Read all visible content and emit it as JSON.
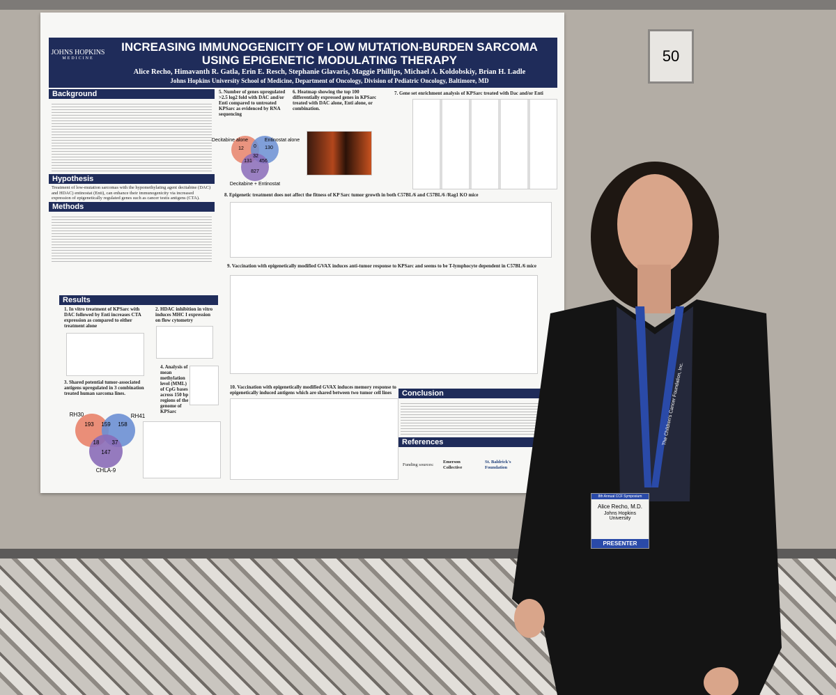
{
  "board_number": "50",
  "poster": {
    "logo": {
      "name": "JOHNS HOPKINS",
      "sub": "MEDICINE"
    },
    "title": "INCREASING IMMUNOGENICITY OF LOW MUTATION-BURDEN SARCOMA USING EPIGENETIC MODULATING THERAPY",
    "authors": "Alice Recho, Himavanth R. Gatla, Erin E. Resch, Stephanie Glavaris, Maggie Phillips, Michael A. Koldobskiy, Brian H. Ladle",
    "affiliation": "Johns Hopkins University School of Medicine, Department of Oncology, Division of Pediatric Oncology, Baltimore, MD",
    "sections": {
      "background": "Background",
      "hypothesis": "Hypothesis",
      "hypothesis_text": "Treatment of low-mutation sarcomas with the hypomethylating agent decitabine (DAC) and HDAC) entinostat (Enti), can enhance their immunogenicity via increased expression of epigenetically regulated genes such as cancer testis antigens (CTA).",
      "methods": "Methods",
      "results": "Results",
      "conclusion": "Conclusion",
      "references": "References"
    },
    "panels": [
      "1. In vitro treatment of KPSarc with DAC followed by Enti increases CTA expression as compared to either treatment alone",
      "2. HDAC inhibition in vitro induces MHC I expression on flow cytometry",
      "3. Shared potential tumor-associated antigens upregulated in 3 combination treated human sarcoma lines.",
      "4. Analysis of mean methylation level (MML) of CpG bases across 150 bp regions of the genome of KPSarc",
      "5. Number of genes upregulated >2.5 log2 fold with DAC and/or Enti compared to untreated KPSarc as evidenced by RNA sequencing",
      "6. Heatmap showing the top 100 differentially expressed genes in KPSarc treated with DAC alone, Enti alone, or combination.",
      "7. Gene set enrichment analysis of KPSarc treated with Dac and/or Enti",
      "8. Epigenetic treatment does not affect the fitness of KP Sarc tumor growth in both C57BL/6 and C57BL/6 /Rag1 KO mice",
      "9. Vaccination with epigenetically modified GVAX induces anti-tumor response to KPSarc and seems to be T-lymphocyte dependent in C57BL/6 mice",
      "10. Vaccination with epigenetically modified GVAX induces memory response to epigenetically induced antigens which are shared between two tumor cell lines"
    ],
    "venn_mouse": {
      "labels": [
        "Decitabine alone",
        "Entinostat alone",
        "Decitabine + Entinostat"
      ],
      "counts": [
        12,
        0,
        130,
        131,
        32,
        456,
        827
      ]
    },
    "venn_human": {
      "labels": [
        "RH30",
        "RH41",
        "CHLA-9"
      ],
      "counts": [
        193,
        159,
        158,
        18,
        37,
        147
      ]
    },
    "funding": {
      "label": "Funding sources:",
      "sponsors": [
        "Emerson Collective",
        "St. Baldrick's Foundation"
      ]
    }
  },
  "badge": {
    "event": "8th Annual CCF Symposium",
    "name": "Alice Recho, M.D.",
    "affiliation": "Johns Hopkins University",
    "role": "PRESENTER"
  },
  "lanyard": "The Children's Cancer Foundation, Inc."
}
